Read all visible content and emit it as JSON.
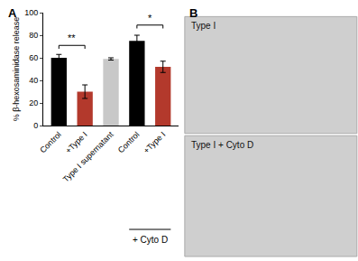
{
  "chart_data": {
    "type": "bar",
    "panel": "A",
    "categories": [
      "Control",
      "+Type I",
      "Type I supernatant",
      "Control",
      "+Type I"
    ],
    "values": [
      60,
      30,
      59,
      75,
      52
    ],
    "error": [
      3,
      6,
      1,
      5,
      5
    ],
    "colors": [
      "#000000",
      "#b3392c",
      "#c8c8c8",
      "#000000",
      "#b3392c"
    ],
    "y_label": "% β-hexosaminidase release",
    "ylim": [
      0,
      100
    ],
    "yticks": [
      0,
      20,
      40,
      60,
      80,
      100
    ],
    "significance": [
      {
        "from": 0,
        "to": 1,
        "y": 71,
        "label": "**"
      },
      {
        "from": 3,
        "to": 4,
        "y": 89,
        "label": "*"
      }
    ],
    "group": {
      "from": 3,
      "to": 4,
      "label": "+ Cyto D"
    }
  },
  "micrographs": {
    "panel": "B",
    "images": [
      "Type I",
      "Type I + Cyto D"
    ]
  }
}
